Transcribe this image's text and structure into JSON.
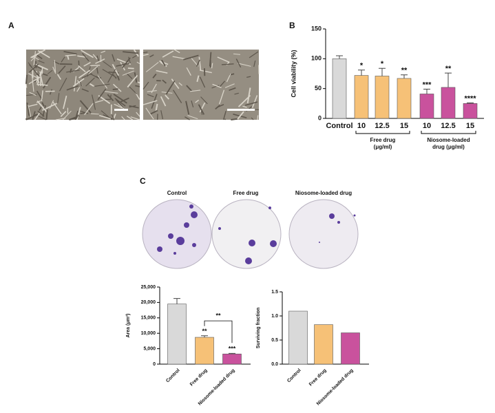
{
  "panels": {
    "a": "A",
    "b": "B",
    "c": "C"
  },
  "plates": [
    "Control",
    "Free drug",
    "Niosome-loaded drug"
  ],
  "chart_data": [
    {
      "type": "bar",
      "ylabel": "Cell viability (%)",
      "categories": [
        "Control",
        "10",
        "12.5",
        "15",
        "10",
        "12.5",
        "15"
      ],
      "values": [
        100,
        72,
        71,
        67,
        41,
        52,
        25
      ],
      "errors": [
        5,
        9,
        13,
        6,
        8,
        24,
        1
      ],
      "significance": [
        null,
        "*",
        "*",
        "**",
        "***",
        "**",
        "****"
      ],
      "colors": [
        "#d9d9d9",
        "#f6c177",
        "#f6c177",
        "#f6c177",
        "#c9529d",
        "#c9529d",
        "#c9529d"
      ],
      "groups": [
        {
          "lines": [
            "Free drug",
            "(μg/ml)"
          ]
        },
        {
          "lines": [
            "Niosome-loaded",
            "drug (μg/ml)"
          ]
        }
      ],
      "ylim": [
        0,
        150
      ],
      "yticks": [
        0,
        50,
        100,
        150
      ]
    },
    {
      "type": "bar",
      "ylabel": "Area (μm²)",
      "categories": [
        "Control",
        "Free drug",
        "Niosome-loaded drug"
      ],
      "values": [
        19500,
        8700,
        3300
      ],
      "errors": [
        1800,
        500,
        200
      ],
      "significance": [
        null,
        "**",
        "***"
      ],
      "bracket_label": "**",
      "colors": [
        "#d9d9d9",
        "#f6c177",
        "#c9529d"
      ],
      "ylim": [
        0,
        25000
      ],
      "yticks": [
        {
          "value": 0,
          "label": "0"
        },
        {
          "value": 5000,
          "label": "5,000"
        },
        {
          "value": 10000,
          "label": "10,000"
        },
        {
          "value": 15000,
          "label": "15,000"
        },
        {
          "value": 20000,
          "label": "20,000"
        },
        {
          "value": 25000,
          "label": "25,000"
        }
      ]
    },
    {
      "type": "bar",
      "ylabel": "Surviving fraction",
      "categories": [
        "Control",
        "Free drug",
        "Niosome-loaded drug"
      ],
      "values": [
        1.1,
        0.82,
        0.65
      ],
      "colors": [
        "#d9d9d9",
        "#f6c177",
        "#c9529d"
      ],
      "ylim": [
        0,
        1.5
      ],
      "yticks": [
        {
          "value": 0,
          "label": "0.0"
        },
        {
          "value": 0.5,
          "label": "0.5"
        },
        {
          "value": 1,
          "label": "1.0"
        },
        {
          "value": 1.5,
          "label": "1.5"
        }
      ]
    }
  ]
}
